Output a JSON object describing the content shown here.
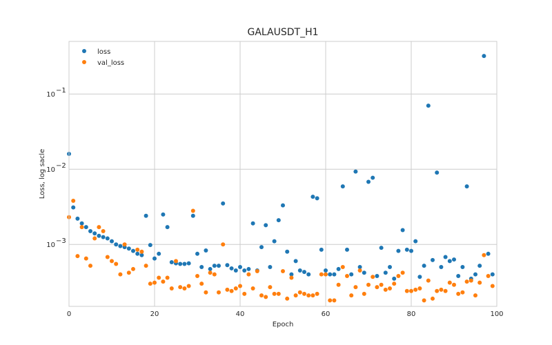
{
  "chart_data": {
    "type": "scatter",
    "title": "GALAUSDT_H1",
    "xlabel": "Epoch",
    "ylabel": "Loss, log sacle",
    "xlim": [
      0,
      100
    ],
    "ylim": [
      0.00015,
      0.5
    ],
    "yscale": "log",
    "grid": true,
    "legend_position": "upper-left",
    "x_ticks": [
      0,
      20,
      40,
      60,
      80,
      100
    ],
    "y_ticks": [
      {
        "value": 0.001,
        "base": "10",
        "exp": "−3"
      },
      {
        "value": 0.01,
        "base": "10",
        "exp": "−2"
      },
      {
        "value": 0.1,
        "base": "10",
        "exp": "−1"
      }
    ],
    "series": [
      {
        "name": "loss",
        "color": "#1f77b4",
        "x": [
          0,
          1,
          2,
          3,
          4,
          5,
          6,
          7,
          8,
          9,
          10,
          11,
          12,
          13,
          14,
          15,
          16,
          17,
          18,
          19,
          20,
          21,
          22,
          23,
          24,
          25,
          26,
          27,
          28,
          29,
          30,
          31,
          32,
          33,
          34,
          35,
          36,
          37,
          38,
          39,
          40,
          41,
          42,
          43,
          44,
          45,
          46,
          47,
          48,
          49,
          50,
          51,
          52,
          53,
          54,
          55,
          56,
          57,
          58,
          59,
          60,
          61,
          62,
          63,
          64,
          65,
          66,
          67,
          68,
          69,
          70,
          71,
          72,
          73,
          74,
          75,
          76,
          77,
          78,
          79,
          80,
          81,
          82,
          83,
          84,
          85,
          86,
          87,
          88,
          89,
          90,
          91,
          92,
          93,
          94,
          95,
          96,
          97,
          98,
          99
        ],
        "y": [
          0.016,
          0.0031,
          0.0022,
          0.0019,
          0.0017,
          0.0015,
          0.0014,
          0.0013,
          0.00125,
          0.0012,
          0.0011,
          0.001,
          0.00095,
          0.00092,
          0.00088,
          0.00082,
          0.00075,
          0.00072,
          0.0024,
          0.00098,
          0.00065,
          0.00075,
          0.0025,
          0.0017,
          0.00058,
          0.00056,
          0.00055,
          0.00055,
          0.00056,
          0.0024,
          0.00075,
          0.0005,
          0.00083,
          0.00047,
          0.00052,
          0.00052,
          0.0035,
          0.00053,
          0.00048,
          0.00045,
          0.0005,
          0.00045,
          0.00047,
          0.0019,
          0.00045,
          0.00092,
          0.0018,
          0.0005,
          0.0011,
          0.0021,
          0.0033,
          0.0008,
          0.0004,
          0.0006,
          0.00045,
          0.00043,
          0.0004,
          0.0043,
          0.0041,
          0.00085,
          0.00045,
          0.0004,
          0.0004,
          0.00047,
          0.0059,
          0.00085,
          0.0004,
          0.0093,
          0.0005,
          0.00042,
          0.0068,
          0.0077,
          0.00038,
          0.0009,
          0.00042,
          0.0005,
          0.00035,
          0.00082,
          0.00155,
          0.00085,
          0.00082,
          0.0011,
          0.00037,
          0.00052,
          0.07,
          0.00062,
          0.009,
          0.0005,
          0.00068,
          0.0006,
          0.00063,
          0.00038,
          0.0005,
          0.0059,
          0.00035,
          0.0004,
          0.00052,
          0.32,
          0.00075,
          0.0004
        ]
      },
      {
        "name": "val_loss",
        "color": "#ff7f0e",
        "x": [
          0,
          1,
          2,
          3,
          4,
          5,
          6,
          7,
          8,
          9,
          10,
          11,
          12,
          13,
          14,
          15,
          16,
          17,
          18,
          19,
          20,
          21,
          22,
          23,
          24,
          25,
          26,
          27,
          28,
          29,
          30,
          31,
          32,
          33,
          34,
          35,
          36,
          37,
          38,
          39,
          40,
          41,
          42,
          43,
          44,
          45,
          46,
          47,
          48,
          49,
          50,
          51,
          52,
          53,
          54,
          55,
          56,
          57,
          58,
          59,
          60,
          61,
          62,
          63,
          64,
          65,
          66,
          67,
          68,
          69,
          70,
          71,
          72,
          73,
          74,
          75,
          76,
          77,
          78,
          79,
          80,
          81,
          82,
          83,
          84,
          85,
          86,
          87,
          88,
          89,
          90,
          91,
          92,
          93,
          94,
          95,
          96,
          97,
          98,
          99
        ],
        "y": [
          0.0023,
          0.0038,
          0.0007,
          0.0017,
          0.00065,
          0.00052,
          0.0012,
          0.0017,
          0.0015,
          0.00068,
          0.0006,
          0.00055,
          0.0004,
          0.001,
          0.00042,
          0.00047,
          0.00085,
          0.0008,
          0.00052,
          0.0003,
          0.00031,
          0.00036,
          0.00032,
          0.00036,
          0.00026,
          0.0006,
          0.00027,
          0.00026,
          0.00028,
          0.0028,
          0.00038,
          0.0003,
          0.00023,
          0.00042,
          0.0004,
          0.00023,
          0.001,
          0.00025,
          0.00024,
          0.00026,
          0.00028,
          0.00022,
          0.0004,
          0.00026,
          0.00044,
          0.00021,
          0.0002,
          0.00027,
          0.00022,
          0.00022,
          0.00044,
          0.00019,
          0.00036,
          0.00021,
          0.00023,
          0.00022,
          0.00021,
          0.00021,
          0.00022,
          0.0004,
          0.0004,
          0.00018,
          0.00018,
          0.00029,
          0.0005,
          0.00038,
          0.00021,
          0.00027,
          0.00045,
          0.00022,
          0.00029,
          0.00037,
          0.00027,
          0.00029,
          0.00025,
          0.00026,
          0.0003,
          0.00038,
          0.00042,
          0.00024,
          0.00024,
          0.00025,
          0.00026,
          0.00018,
          0.00033,
          0.00019,
          0.00024,
          0.00025,
          0.00024,
          0.00031,
          0.00029,
          0.00022,
          0.00023,
          0.00032,
          0.00033,
          0.00021,
          0.00031,
          0.00072,
          0.00038,
          0.00028
        ]
      }
    ]
  }
}
